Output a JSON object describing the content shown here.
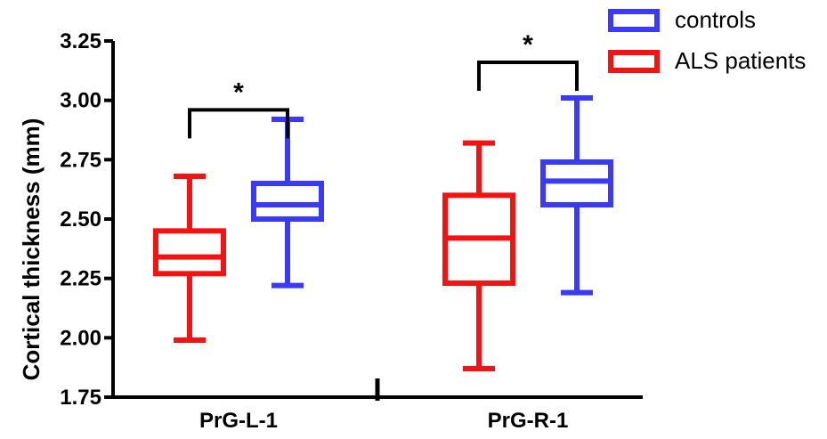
{
  "chart_data": {
    "type": "box",
    "ylabel": "Cortical thickness (mm)",
    "xlabel": "",
    "ylim": [
      1.75,
      3.25
    ],
    "yticks": [
      1.75,
      2.0,
      2.25,
      2.5,
      2.75,
      3.0,
      3.25
    ],
    "ytick_labels": [
      "1.75",
      "2.00",
      "2.25",
      "2.50",
      "2.75",
      "3.00",
      "3.25"
    ],
    "categories": [
      "PrG-L-1",
      "PrG-R-1"
    ],
    "legend_position": "top-right",
    "series": [
      {
        "name": "controls",
        "color": "#3b3bf5",
        "boxes": [
          {
            "min": 2.22,
            "q1": 2.5,
            "median": 2.56,
            "q3": 2.65,
            "max": 2.92
          },
          {
            "min": 2.19,
            "q1": 2.56,
            "median": 2.66,
            "q3": 2.74,
            "max": 3.01
          }
        ]
      },
      {
        "name": "ALS patients",
        "color": "#f01414",
        "boxes": [
          {
            "min": 1.99,
            "q1": 2.27,
            "median": 2.34,
            "q3": 2.45,
            "max": 2.68
          },
          {
            "min": 1.87,
            "q1": 2.23,
            "median": 2.42,
            "q3": 2.6,
            "max": 2.82
          }
        ]
      }
    ],
    "annotations": [
      {
        "label": "*",
        "category": "PrG-L-1"
      },
      {
        "label": "*",
        "category": "PrG-R-1"
      }
    ]
  }
}
